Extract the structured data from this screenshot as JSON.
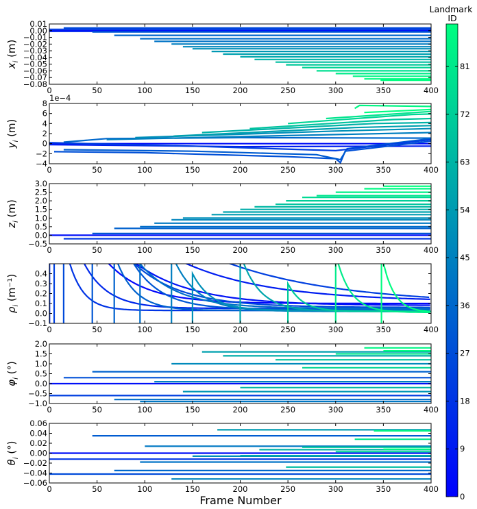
{
  "chart_data": {
    "type": "line",
    "x_label": "Frame Number",
    "x_ticks": [
      "0",
      "50",
      "100",
      "150",
      "200",
      "250",
      "300",
      "350",
      "400"
    ],
    "xlim": [
      0,
      400
    ],
    "colorbar": {
      "title_line1": "Landmark",
      "title_line2": "ID",
      "ticks": [
        "0",
        "9",
        "18",
        "27",
        "36",
        "45",
        "54",
        "63",
        "72",
        "81"
      ],
      "range": [
        0,
        89
      ],
      "colormap": "winter",
      "color_low": "#0000ff",
      "color_high": "#00ff80"
    },
    "subplots": [
      {
        "ylabel_sym": "x",
        "ylabel_sub": "i",
        "ylabel_unit": " (m)",
        "ylim": [
          -0.08,
          0.01
        ],
        "y_ticks": [
          "0.01",
          "0.00",
          "−0.01",
          "−0.02",
          "−0.03",
          "−0.04",
          "−0.05",
          "−0.06",
          "−0.07",
          "−0.08"
        ],
        "scale_label": "",
        "series": [
          {
            "start": 0,
            "value": 0.0,
            "id": 5
          },
          {
            "start": 0,
            "value": -0.001,
            "id": 12
          },
          {
            "start": 0,
            "value": 0.002,
            "id": 20
          },
          {
            "start": 15,
            "value": 0.004,
            "id": 25
          },
          {
            "start": 45,
            "value": -0.002,
            "id": 30
          },
          {
            "start": 68,
            "value": -0.007,
            "id": 35
          },
          {
            "start": 95,
            "value": -0.012,
            "id": 38
          },
          {
            "start": 110,
            "value": -0.016,
            "id": 40
          },
          {
            "start": 128,
            "value": -0.02,
            "id": 44
          },
          {
            "start": 140,
            "value": -0.024,
            "id": 47
          },
          {
            "start": 150,
            "value": -0.027,
            "id": 50
          },
          {
            "start": 170,
            "value": -0.031,
            "id": 53
          },
          {
            "start": 182,
            "value": -0.035,
            "id": 56
          },
          {
            "start": 200,
            "value": -0.039,
            "id": 58
          },
          {
            "start": 215,
            "value": -0.043,
            "id": 62
          },
          {
            "start": 237,
            "value": -0.047,
            "id": 66
          },
          {
            "start": 248,
            "value": -0.051,
            "id": 70
          },
          {
            "start": 265,
            "value": -0.055,
            "id": 74
          },
          {
            "start": 280,
            "value": -0.06,
            "id": 78
          },
          {
            "start": 300,
            "value": -0.064,
            "id": 82
          },
          {
            "start": 318,
            "value": -0.068,
            "id": 85
          },
          {
            "start": 330,
            "value": -0.072,
            "id": 87
          },
          {
            "start": 347,
            "value": -0.074,
            "id": 89
          }
        ]
      },
      {
        "ylabel_sym": "y",
        "ylabel_sub": "i",
        "ylabel_unit": " (m)",
        "ylim": [
          -4,
          8
        ],
        "y_ticks": [
          "8",
          "6",
          "4",
          "2",
          "0",
          "−2",
          "−4"
        ],
        "scale_label": "1e−4",
        "series": [
          {
            "points": [
              [
                0,
                0
              ],
              [
                400,
                0
              ]
            ],
            "id": 5
          },
          {
            "points": [
              [
                0,
                -0.2
              ],
              [
                200,
                -0.6
              ],
              [
                400,
                -0.5
              ]
            ],
            "id": 10
          },
          {
            "points": [
              [
                5,
                -1.6
              ],
              [
                100,
                -1.8
              ],
              [
                250,
                -2.6
              ],
              [
                300,
                -3.0
              ],
              [
                305,
                -3.8
              ],
              [
                310,
                -1.5
              ],
              [
                400,
                0.5
              ]
            ],
            "id": 28
          },
          {
            "points": [
              [
                15,
                -1.2
              ],
              [
                150,
                -1.5
              ],
              [
                280,
                -2.2
              ],
              [
                305,
                -3.2
              ],
              [
                312,
                -1.0
              ],
              [
                400,
                1.0
              ]
            ],
            "id": 32
          },
          {
            "points": [
              [
                15,
                0.3
              ],
              [
                60,
                1.0
              ],
              [
                200,
                1.2
              ],
              [
                400,
                1.1
              ]
            ],
            "id": 36
          },
          {
            "points": [
              [
                0,
                0.2
              ],
              [
                150,
                -0.5
              ],
              [
                300,
                -1.4
              ],
              [
                400,
                0.8
              ]
            ],
            "id": 22
          },
          {
            "points": [
              [
                60,
                0.8
              ],
              [
                250,
                1.6
              ],
              [
                400,
                2.2
              ]
            ],
            "id": 44
          },
          {
            "points": [
              [
                90,
                1.2
              ],
              [
                300,
                2.5
              ],
              [
                400,
                3.0
              ]
            ],
            "id": 50
          },
          {
            "points": [
              [
                130,
                1.5
              ],
              [
                320,
                3.2
              ],
              [
                400,
                3.6
              ]
            ],
            "id": 56
          },
          {
            "points": [
              [
                160,
                2.2
              ],
              [
                340,
                4.0
              ],
              [
                400,
                4.2
              ]
            ],
            "id": 62
          },
          {
            "points": [
              [
                210,
                3.0
              ],
              [
                360,
                4.8
              ],
              [
                400,
                5.0
              ]
            ],
            "id": 68
          },
          {
            "points": [
              [
                250,
                4.0
              ],
              [
                380,
                5.8
              ],
              [
                400,
                5.9
              ]
            ],
            "id": 74
          },
          {
            "points": [
              [
                290,
                5.0
              ],
              [
                400,
                6.4
              ]
            ],
            "id": 80
          },
          {
            "points": [
              [
                320,
                7.0
              ],
              [
                325,
                7.6
              ],
              [
                400,
                7.4
              ]
            ],
            "id": 86
          },
          {
            "points": [
              [
                330,
                6.2
              ],
              [
                400,
                6.8
              ]
            ],
            "id": 89
          }
        ]
      },
      {
        "ylabel_sym": "z",
        "ylabel_sub": "i",
        "ylabel_unit": " (m)",
        "ylim": [
          -0.5,
          3.0
        ],
        "y_ticks": [
          "3.0",
          "2.5",
          "2.0",
          "1.5",
          "1.0",
          "0.5",
          "0.0",
          "−0.5"
        ],
        "scale_label": "",
        "series": [
          {
            "start": 0,
            "value": 0.0,
            "id": 5
          },
          {
            "start": 15,
            "value": -0.2,
            "id": 20
          },
          {
            "start": 45,
            "value": 0.1,
            "id": 30
          },
          {
            "start": 68,
            "value": 0.4,
            "id": 34
          },
          {
            "start": 95,
            "value": 0.5,
            "id": 38
          },
          {
            "start": 110,
            "value": 0.7,
            "id": 42
          },
          {
            "start": 128,
            "value": 0.9,
            "id": 46
          },
          {
            "start": 140,
            "value": 1.0,
            "id": 50
          },
          {
            "start": 170,
            "value": 1.2,
            "id": 54
          },
          {
            "start": 182,
            "value": 1.35,
            "id": 57
          },
          {
            "start": 200,
            "value": 1.5,
            "id": 60
          },
          {
            "start": 215,
            "value": 1.65,
            "id": 64
          },
          {
            "start": 237,
            "value": 1.8,
            "id": 68
          },
          {
            "start": 248,
            "value": 2.0,
            "id": 72
          },
          {
            "start": 265,
            "value": 2.2,
            "id": 76
          },
          {
            "start": 280,
            "value": 2.3,
            "id": 80
          },
          {
            "start": 300,
            "value": 2.5,
            "id": 84
          },
          {
            "start": 330,
            "value": 2.7,
            "id": 87
          },
          {
            "start": 350,
            "value": 2.85,
            "id": 89
          }
        ]
      },
      {
        "ylabel_sym": "ρ",
        "ylabel_sub": "i",
        "ylabel_unit": " (m⁻¹)",
        "ylim": [
          -0.1,
          0.5
        ],
        "y_ticks": [
          "0.4",
          "0.3",
          "0.2",
          "0.1",
          "0.0",
          "−0.1"
        ],
        "scale_label": "",
        "series": [
          {
            "decay": {
              "start": 0,
              "peak": 2.0,
              "final": 0.1,
              "rate": 40
            },
            "id": 2
          },
          {
            "decay": {
              "start": 0,
              "peak": 2.0,
              "final": 0.08,
              "rate": 60
            },
            "id": 6
          },
          {
            "decay": {
              "start": 0,
              "peak": 2.0,
              "final": 0.12,
              "rate": 90
            },
            "id": 10
          },
          {
            "decay": {
              "start": 0,
              "peak": 2.0,
              "final": 0.05,
              "rate": 25
            },
            "id": 14
          },
          {
            "decay": {
              "start": 0,
              "peak": 2.0,
              "final": 0.03,
              "rate": 15
            },
            "id": 18
          },
          {
            "decay": {
              "start": 5,
              "peak": 2.0,
              "final": 0.09,
              "rate": 120
            },
            "id": 22
          },
          {
            "decay": {
              "start": 15,
              "peak": 2.0,
              "final": 0.06,
              "rate": 50
            },
            "id": 26
          },
          {
            "decay": {
              "start": 45,
              "peak": 2.0,
              "final": 0.04,
              "rate": 30
            },
            "id": 30
          },
          {
            "decay": {
              "start": 68,
              "peak": 0.6,
              "final": 0.03,
              "rate": 20
            },
            "id": 34
          },
          {
            "decay": {
              "start": 95,
              "peak": 0.5,
              "final": 0.05,
              "rate": 40
            },
            "id": 38
          },
          {
            "decay": {
              "start": 128,
              "peak": 0.6,
              "final": 0.02,
              "rate": 25
            },
            "id": 44
          },
          {
            "decay": {
              "start": 150,
              "peak": 0.4,
              "final": 0.03,
              "rate": 20
            },
            "id": 50
          },
          {
            "decay": {
              "start": 200,
              "peak": 0.6,
              "final": 0.02,
              "rate": 20
            },
            "id": 58
          },
          {
            "decay": {
              "start": 250,
              "peak": 0.3,
              "final": 0.02,
              "rate": 15
            },
            "id": 70
          },
          {
            "decay": {
              "start": 300,
              "peak": 0.6,
              "final": 0.01,
              "rate": 15
            },
            "id": 82
          },
          {
            "decay": {
              "start": 348,
              "peak": 0.6,
              "final": 0.01,
              "rate": 12
            },
            "id": 88
          }
        ]
      },
      {
        "ylabel_sym": "φ",
        "ylabel_sub": "i",
        "ylabel_unit": " (°)",
        "ylim": [
          -1.0,
          2.0
        ],
        "y_ticks": [
          "2.0",
          "1.5",
          "1.0",
          "0.5",
          "0.0",
          "−0.5",
          "−1.0"
        ],
        "scale_label": "",
        "series": [
          {
            "start": 0,
            "value": 0.0,
            "id": 5
          },
          {
            "start": 0,
            "value": -0.6,
            "id": 22
          },
          {
            "start": 15,
            "value": 0.3,
            "id": 28
          },
          {
            "start": 45,
            "value": 0.6,
            "id": 34
          },
          {
            "start": 68,
            "value": -0.8,
            "id": 38
          },
          {
            "start": 95,
            "value": -0.9,
            "id": 42
          },
          {
            "start": 110,
            "value": 0.1,
            "id": 45
          },
          {
            "start": 128,
            "value": 1.0,
            "id": 48
          },
          {
            "start": 140,
            "value": -0.4,
            "id": 52
          },
          {
            "start": 160,
            "value": 1.6,
            "id": 56
          },
          {
            "start": 182,
            "value": 1.4,
            "id": 60
          },
          {
            "start": 200,
            "value": -0.2,
            "id": 64
          },
          {
            "start": 237,
            "value": 1.2,
            "id": 68
          },
          {
            "start": 265,
            "value": 0.8,
            "id": 74
          },
          {
            "start": 300,
            "value": 1.5,
            "id": 80
          },
          {
            "start": 330,
            "value": 1.8,
            "id": 86
          },
          {
            "start": 350,
            "value": 1.65,
            "id": 89
          }
        ]
      },
      {
        "ylabel_sym": "θ",
        "ylabel_sub": "i",
        "ylabel_unit": " (°)",
        "ylim": [
          -0.06,
          0.06
        ],
        "y_ticks": [
          "0.06",
          "0.04",
          "0.02",
          "0.00",
          "−0.02",
          "−0.04",
          "−0.06"
        ],
        "scale_label": "",
        "series": [
          {
            "start": 0,
            "value": 0.0,
            "id": 5
          },
          {
            "start": 0,
            "value": -0.012,
            "id": 18
          },
          {
            "start": 0,
            "value": -0.042,
            "id": 26
          },
          {
            "start": 45,
            "value": 0.035,
            "id": 32
          },
          {
            "start": 68,
            "value": -0.035,
            "id": 36
          },
          {
            "start": 95,
            "value": -0.018,
            "id": 40
          },
          {
            "start": 100,
            "value": 0.014,
            "id": 42
          },
          {
            "start": 128,
            "value": -0.052,
            "id": 46
          },
          {
            "start": 150,
            "value": -0.006,
            "id": 50
          },
          {
            "start": 176,
            "value": 0.047,
            "id": 54
          },
          {
            "start": 200,
            "value": -0.005,
            "id": 58
          },
          {
            "start": 220,
            "value": 0.007,
            "id": 62
          },
          {
            "start": 248,
            "value": -0.028,
            "id": 66
          },
          {
            "start": 265,
            "value": 0.012,
            "id": 70
          },
          {
            "start": 300,
            "value": 0.003,
            "id": 76
          },
          {
            "start": 320,
            "value": 0.028,
            "id": 80
          },
          {
            "start": 340,
            "value": 0.045,
            "id": 86
          },
          {
            "start": 350,
            "value": 0.008,
            "id": 89
          }
        ]
      }
    ]
  }
}
